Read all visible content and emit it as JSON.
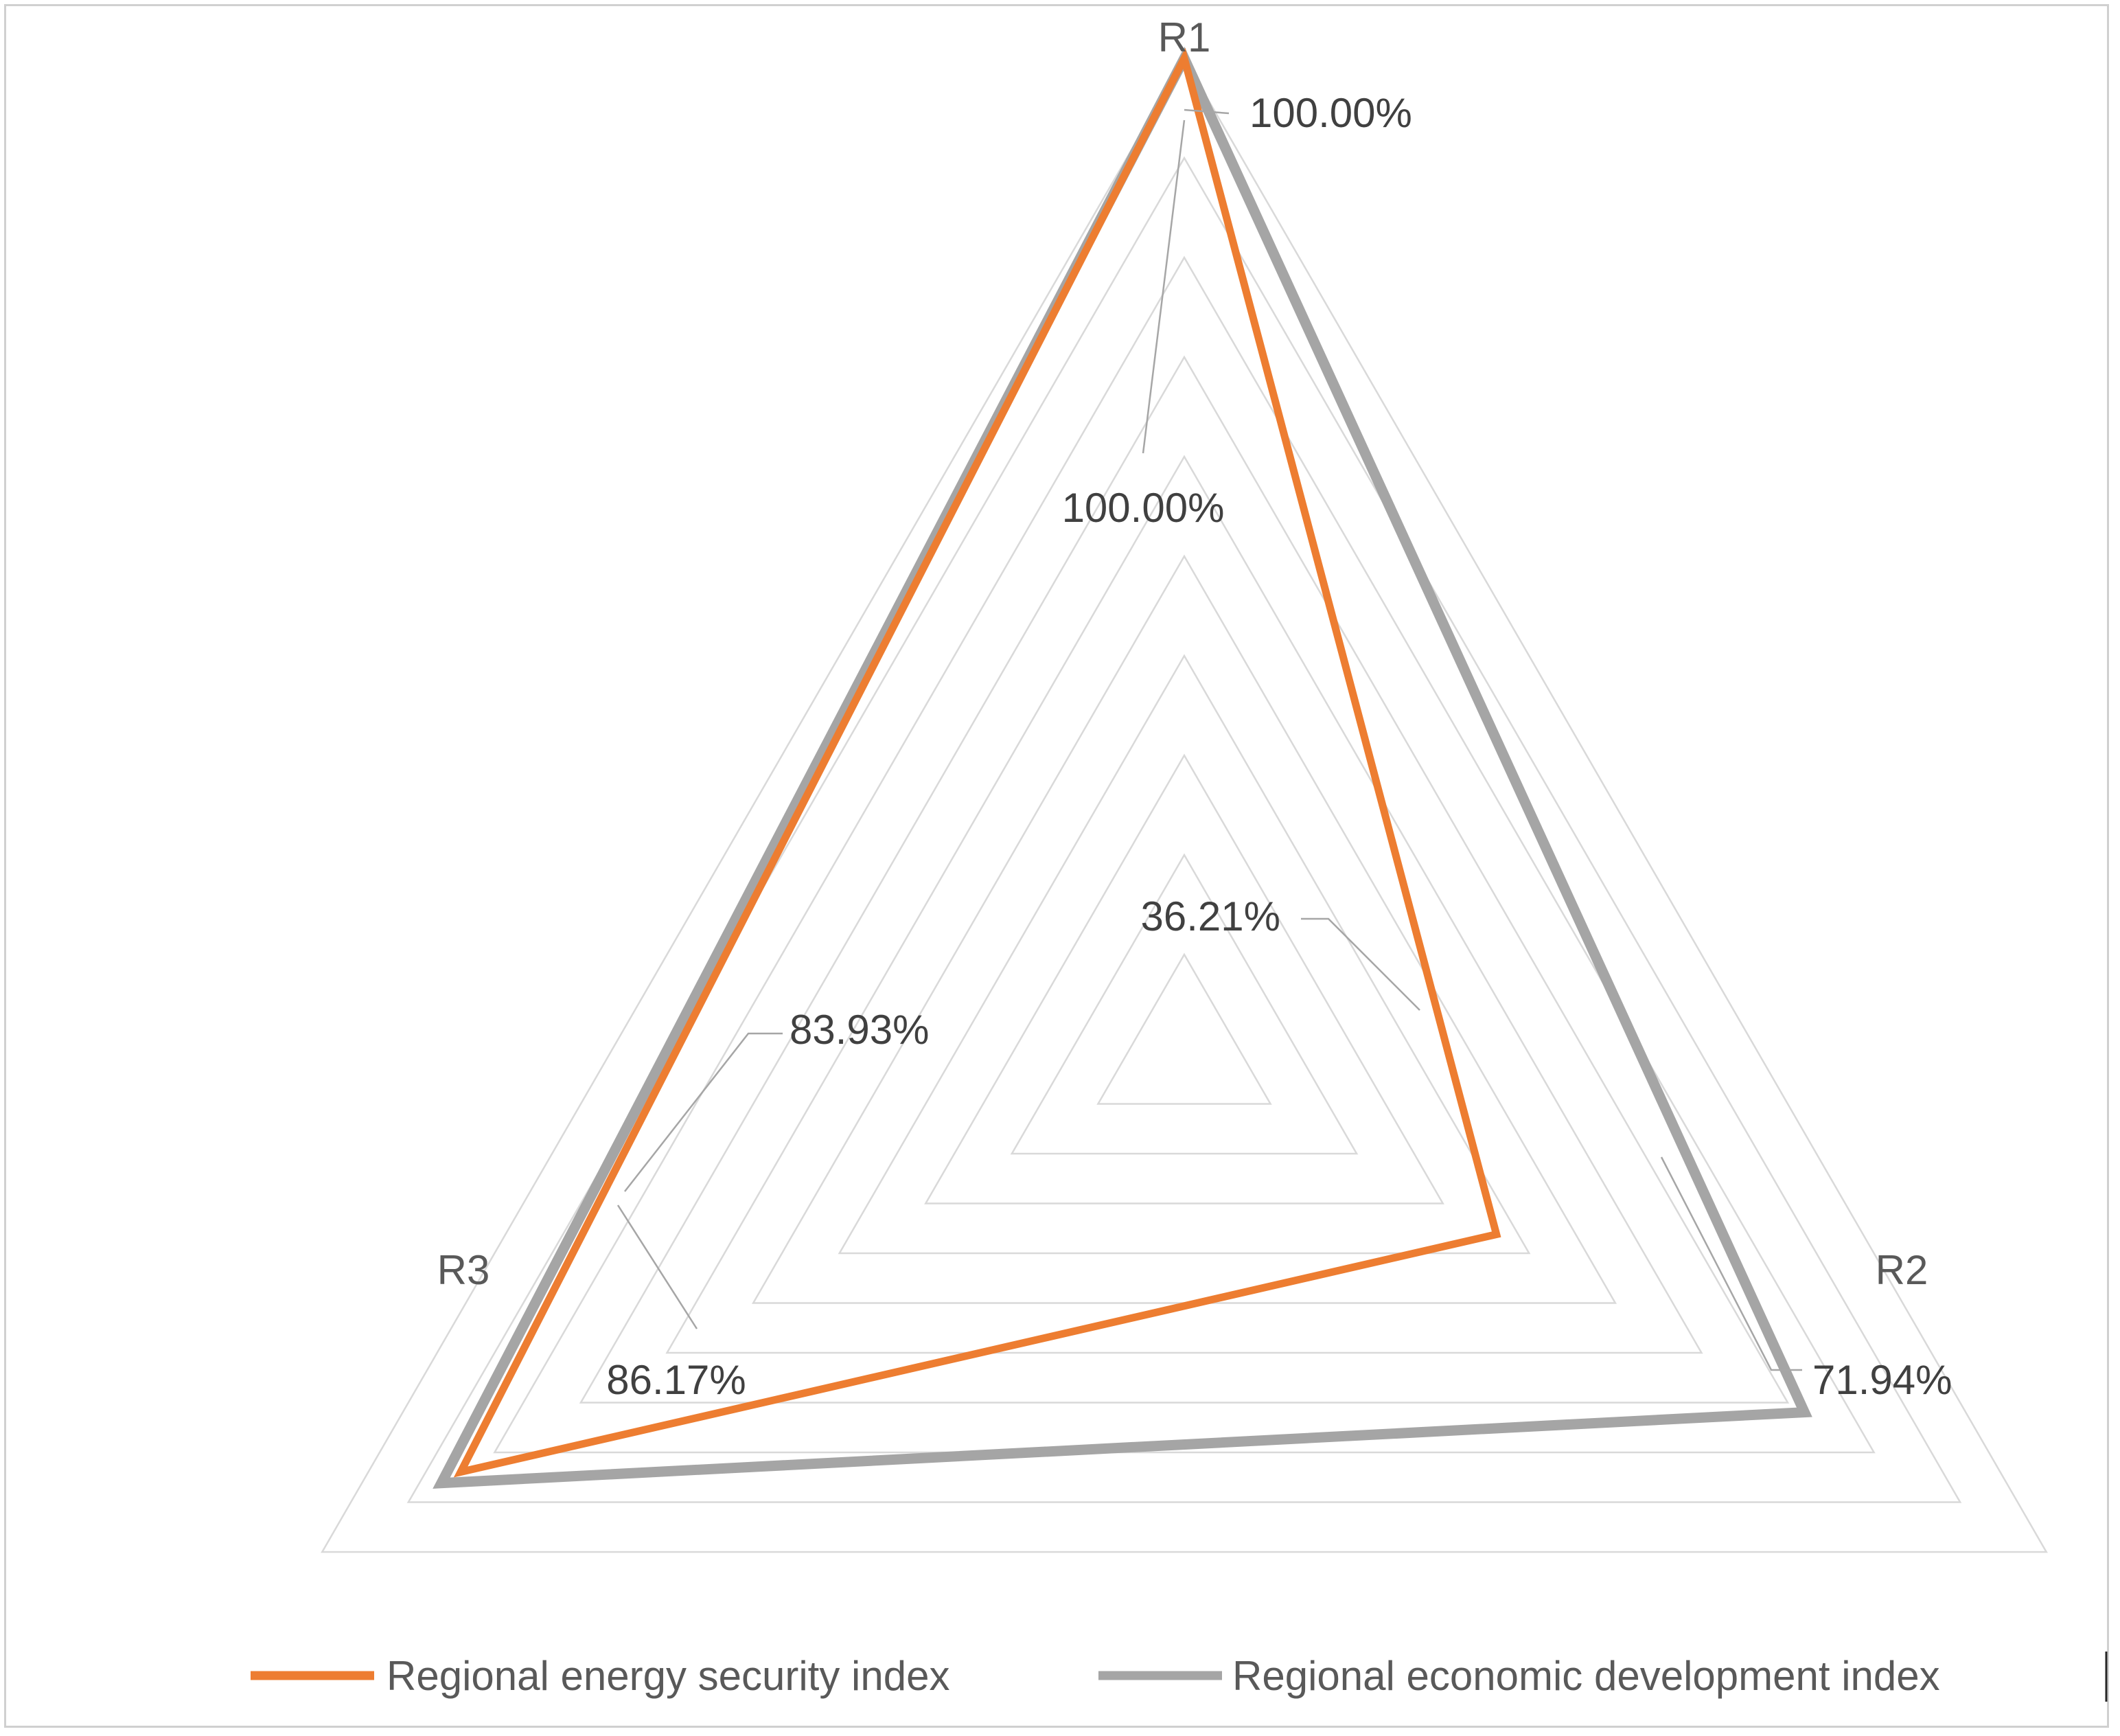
{
  "chart_data": {
    "type": "radar",
    "title": "",
    "categories": [
      "R1",
      "R2",
      "R3"
    ],
    "range": [
      0,
      1
    ],
    "gridlines": 9,
    "legend_position": "bottom",
    "series": [
      {
        "name": "Regional energy security index",
        "color": "#ED7D31",
        "values": [
          1.0,
          0.3621,
          0.8393
        ],
        "labels": [
          "100.00%",
          "36.21%",
          "83.93%"
        ]
      },
      {
        "name": "Regional economic development index",
        "color": "#A5A5A5",
        "values": [
          1.0,
          0.7194,
          0.8617
        ],
        "labels": [
          "100.00%",
          "71.94%",
          "86.17%"
        ]
      }
    ]
  }
}
